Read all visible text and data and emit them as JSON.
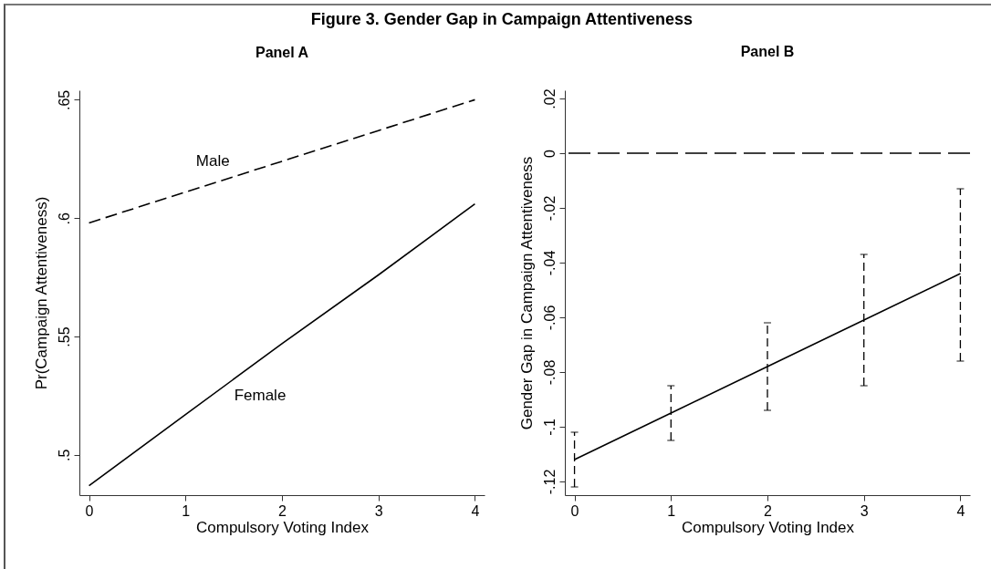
{
  "chart_data": [
    {
      "type": "line",
      "title": "Figure 3. Gender Gap in Campaign Attentiveness",
      "subtitle": "Panel A",
      "xlabel": "Compulsory Voting Index",
      "ylabel": "Pr(Campaign Attentiveness)",
      "x": [
        0,
        1,
        2,
        3,
        4
      ],
      "series": [
        {
          "name": "Male",
          "color": "#000000",
          "line_style": "dashed",
          "values": [
            0.598,
            0.611,
            0.624,
            0.637,
            0.65
          ]
        },
        {
          "name": "Female",
          "color": "#000000",
          "line_style": "solid",
          "values": [
            0.487,
            0.517,
            0.547,
            0.576,
            0.606
          ]
        }
      ],
      "xlim": [
        -0.1,
        4.1
      ],
      "xticks": [
        0,
        1,
        2,
        3,
        4
      ],
      "ylim": [
        0.483,
        0.654
      ],
      "yticks": [
        {
          "value": 0.5,
          "label": ".5"
        },
        {
          "value": 0.55,
          "label": ".55"
        },
        {
          "value": 0.6,
          "label": ".6"
        },
        {
          "value": 0.65,
          "label": ".65"
        }
      ]
    },
    {
      "type": "line",
      "subtitle": "Panel B",
      "xlabel": "Compulsory Voting Index",
      "ylabel": "Gender Gap in Campaign Attentiveness",
      "x": [
        0,
        1,
        2,
        3,
        4
      ],
      "color": "#000000",
      "line_style": "solid",
      "values": [
        -0.112,
        -0.095,
        -0.078,
        -0.061,
        -0.044
      ],
      "errors": [
        [
          -0.122,
          -0.102
        ],
        [
          -0.105,
          -0.085
        ],
        [
          -0.094,
          -0.062
        ],
        [
          -0.085,
          -0.037
        ],
        [
          -0.076,
          -0.013
        ]
      ],
      "xlim": [
        -0.1,
        4.1
      ],
      "xticks": [
        0,
        1,
        2,
        3,
        4
      ],
      "ylim": [
        -0.125,
        0.023
      ],
      "yticks": [
        {
          "value": -0.12,
          "label": "-.12"
        },
        {
          "value": -0.1,
          "label": "-.1"
        },
        {
          "value": -0.08,
          "label": "-.08"
        },
        {
          "value": -0.06,
          "label": "-.06"
        },
        {
          "value": -0.04,
          "label": "-.04"
        },
        {
          "value": -0.02,
          "label": "-.02"
        },
        0,
        {
          "value": 0.02,
          "label": ".02"
        }
      ],
      "ref_lines": [
        {
          "axis": "y",
          "value": 0,
          "line_style": "dashed",
          "color": "#000000"
        }
      ]
    }
  ]
}
